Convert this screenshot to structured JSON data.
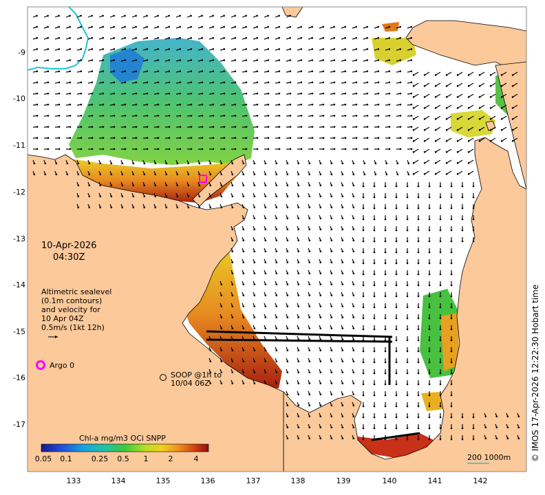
{
  "map": {
    "date": "10-Apr-2026",
    "time": "04:30Z",
    "legend_lines": [
      "Altimetric sealevel",
      "(0.1m contours)",
      "and velocity for",
      "10 Apr 04Z",
      "0.5m/s (1kt 12h)"
    ],
    "argo_label": "Argo 0",
    "soop_label_1": "SOOP @1h to",
    "soop_label_2": "10/04 06Z",
    "colorbar_title": "Chl-a mg/m3 OCi SNPP",
    "colorbar_ticks": [
      "0.05",
      "0.1",
      "0.25",
      "0.5",
      "1",
      "2",
      "4"
    ],
    "scale_label": "200  1000m",
    "credit": "© IMOS 17-Apr-2026 12:22:30 Hobart time",
    "lon_ticks": [
      "133",
      "134",
      "135",
      "136",
      "137",
      "138",
      "139",
      "140",
      "141",
      "142"
    ],
    "lat_ticks": [
      "-9",
      "-10",
      "-11",
      "-12",
      "-13",
      "-14",
      "-15",
      "-16",
      "-17"
    ],
    "colors": {
      "land": "#fbc99a",
      "ocean": "#ffffff",
      "argo": "#ff00ff",
      "contour_cyan": "#22c4d8"
    }
  }
}
